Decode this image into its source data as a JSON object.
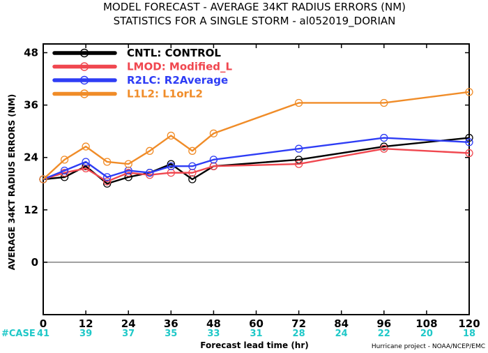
{
  "chart_data": {
    "type": "line",
    "title": "MODEL FORECAST - AVERAGE 34KT RADIUS ERRORS (NM)",
    "subtitle": "STATISTICS FOR A SINGLE STORM - al052019_DORIAN",
    "xlabel": "Forecast lead time (hr)",
    "ylabel": "AVERAGE 34KT RADIUS ERRORS (NM)",
    "xlim": [
      0,
      120
    ],
    "ylim": [
      -12,
      50
    ],
    "x_ticks": [
      0,
      12,
      24,
      36,
      48,
      60,
      72,
      84,
      96,
      108,
      120
    ],
    "y_ticks": [
      0,
      12,
      24,
      36,
      48
    ],
    "grid": false,
    "legend_position": "top-left",
    "x": [
      0,
      6,
      12,
      18,
      24,
      30,
      36,
      42,
      48,
      72,
      96,
      120
    ],
    "series": [
      {
        "name": "CNTL: CONTROL",
        "color": "#000000",
        "values": [
          19,
          19.5,
          22,
          18,
          19.5,
          20.5,
          22.5,
          19,
          22,
          23.5,
          26.5,
          28.5
        ]
      },
      {
        "name": "LMOD: Modified_L",
        "color": "#f0474f",
        "values": [
          19,
          20.5,
          21.5,
          18.5,
          20.5,
          20,
          20.5,
          20.5,
          22,
          22.5,
          26,
          25
        ]
      },
      {
        "name": "R2LC: R2Average",
        "color": "#2e3df5",
        "values": [
          19,
          21,
          23,
          19.5,
          21,
          20.5,
          22,
          22,
          23.5,
          26,
          28.5,
          27.5
        ]
      },
      {
        "name": "L1L2: L1orL2",
        "color": "#f08c28",
        "values": [
          19,
          23.5,
          26.5,
          23,
          22.5,
          25.5,
          29,
          25.5,
          29.5,
          36.5,
          36.5,
          39
        ]
      }
    ],
    "case_label": "#CASE",
    "case_hours": [
      0,
      12,
      24,
      36,
      48,
      60,
      72,
      84,
      96,
      108,
      120
    ],
    "case_counts": [
      41,
      39,
      37,
      35,
      33,
      31,
      28,
      24,
      22,
      20,
      18
    ],
    "case_color": "#1fc8c8",
    "credit": "Hurricane project - NOAA/NCEP/EMC"
  }
}
